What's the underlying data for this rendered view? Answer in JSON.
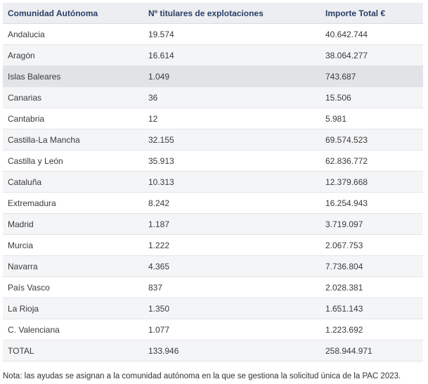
{
  "table": {
    "headers": [
      "Comunidad Autónoma",
      "Nº titulares de explotaciones",
      "Importe Total €"
    ],
    "rows": [
      [
        "Andalucia",
        "19.574",
        "40.642.744"
      ],
      [
        "Aragón",
        "16.614",
        "38.064.277"
      ],
      [
        "Islas Baleares",
        "1.049",
        "743.687"
      ],
      [
        "Canarias",
        "36",
        "15.506"
      ],
      [
        "Cantabria",
        "12",
        "5.981"
      ],
      [
        "Castilla-La Mancha",
        "32.155",
        "69.574.523"
      ],
      [
        "Castilla y León",
        "35.913",
        "62.836.772"
      ],
      [
        "Cataluña",
        "10.313",
        "12.379.668"
      ],
      [
        "Extremadura",
        "8.242",
        "16.254.943"
      ],
      [
        "Madrid",
        "1.187",
        "3.719.097"
      ],
      [
        "Murcia",
        "1.222",
        "2.067.753"
      ],
      [
        "Navarra",
        "4.365",
        "7.736.804"
      ],
      [
        "País Vasco",
        "837",
        "2.028.381"
      ],
      [
        "La Rioja",
        "1.350",
        "1.651.143"
      ],
      [
        "C. Valenciana",
        "1.077",
        "1.223.692"
      ],
      [
        "TOTAL",
        "133.946",
        "258.944.971"
      ]
    ],
    "highlighted_row": "Islas Baleares"
  },
  "note": "Nota: las ayudas se asignan a la comunidad autónoma en la que se gestiona la solicitud única de la PAC 2023.",
  "colors": {
    "header_bg": "#eceef1",
    "header_text": "#2a3f66",
    "row_alt_bg": "#f4f5f7",
    "row_highlight_bg": "#e1e3e6"
  }
}
